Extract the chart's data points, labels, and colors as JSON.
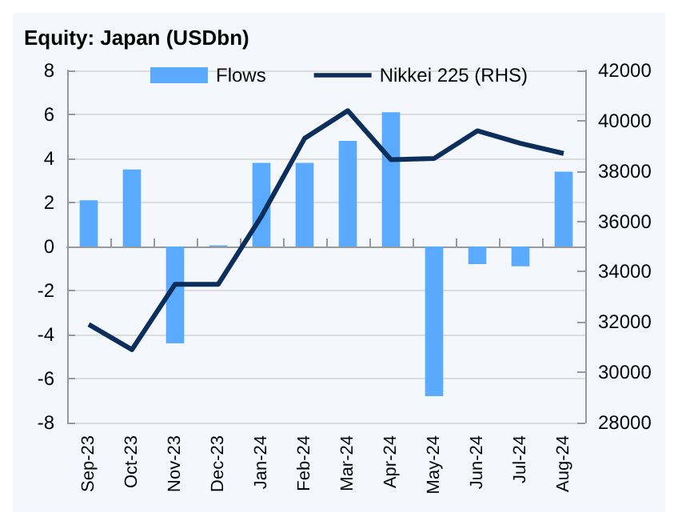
{
  "chart_data": {
    "type": "bar",
    "title": "Equity: Japan (USDbn)",
    "categories": [
      "Sep-23",
      "Oct-23",
      "Nov-23",
      "Dec-23",
      "Jan-24",
      "Feb-24",
      "Mar-24",
      "Apr-24",
      "May-24",
      "Jun-24",
      "Jul-24",
      "Aug-24"
    ],
    "series": [
      {
        "name": "Flows",
        "color": "#5aabff",
        "values": [
          2.1,
          3.5,
          -4.4,
          0.05,
          3.8,
          3.8,
          4.8,
          6.1,
          -6.8,
          -0.8,
          -0.9,
          3.4
        ]
      },
      {
        "name": "Nikkei 225 (RHS)",
        "type": "line",
        "axis": "y2",
        "color": "#0b2e5a",
        "values": [
          31900,
          30900,
          33500,
          33500,
          36200,
          39300,
          40400,
          38450,
          38500,
          39600,
          39100,
          38700
        ]
      }
    ],
    "ylim": [
      -8,
      8
    ],
    "yticks": [
      -8,
      -6,
      -4,
      -2,
      0,
      2,
      4,
      6,
      8
    ],
    "y2lim": [
      28000,
      42000
    ],
    "y2ticks": [
      28000,
      30000,
      32000,
      34000,
      36000,
      38000,
      40000,
      42000
    ],
    "grid": "y",
    "legend": "top",
    "marker": "none",
    "line_style": "solid"
  }
}
